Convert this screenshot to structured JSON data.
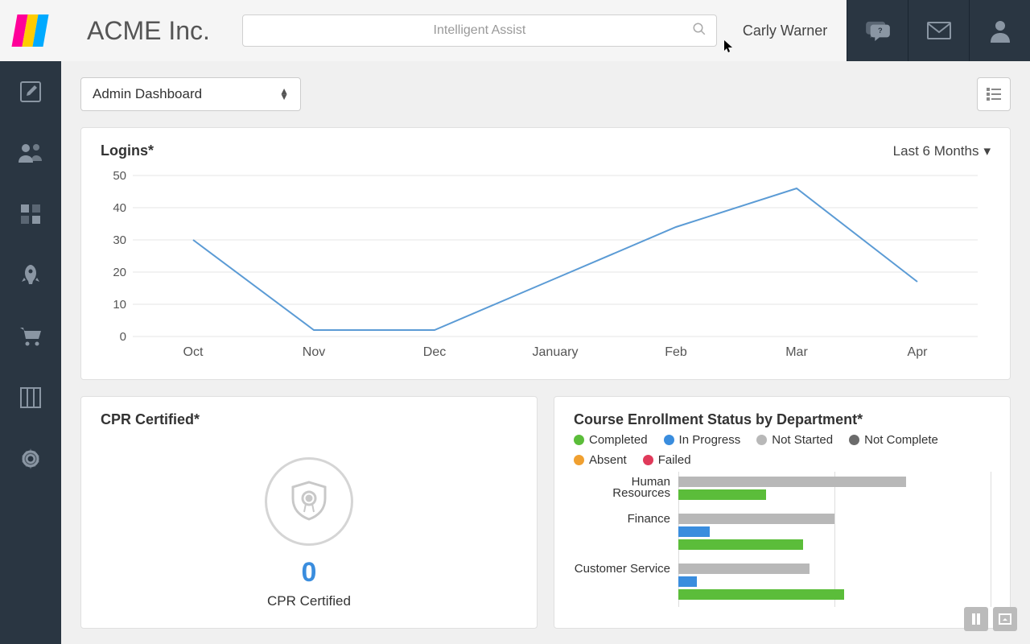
{
  "header": {
    "company": "ACME Inc.",
    "search_placeholder": "Intelligent Assist",
    "user_name": "Carly Warner"
  },
  "dashboard": {
    "selector_label": "Admin Dashboard"
  },
  "logins_chart": {
    "title": "Logins*",
    "time_range": "Last 6 Months",
    "type": "line",
    "xlabels": [
      "Oct",
      "Nov",
      "Dec",
      "January",
      "Feb",
      "Mar",
      "Apr"
    ],
    "values": [
      30,
      2,
      2,
      18,
      34,
      46,
      17
    ],
    "ylim": [
      0,
      50
    ],
    "ytick_step": 10,
    "line_color": "#5b9bd5",
    "line_width": 2,
    "grid_color": "#e5e5e5",
    "axis_label_color": "#555555",
    "background_color": "#ffffff"
  },
  "cpr": {
    "title": "CPR Certified*",
    "value": "0",
    "label": "CPR Certified",
    "value_color": "#3a8dde",
    "badge_border_color": "#d5d5d5"
  },
  "dept_chart": {
    "title": "Course Enrollment Status by Department*",
    "type": "grouped-horizontal-bar",
    "legend": [
      {
        "label": "Completed",
        "color": "#5bbd3a"
      },
      {
        "label": "In Progress",
        "color": "#3a8dde"
      },
      {
        "label": "Not Started",
        "color": "#b8b8b8"
      },
      {
        "label": "Not Complete",
        "color": "#6b6b6b"
      },
      {
        "label": "Absent",
        "color": "#f0a030"
      },
      {
        "label": "Failed",
        "color": "#e03a5a"
      }
    ],
    "departments": [
      {
        "name": "Human Resources",
        "bars": [
          {
            "status": "Not Started",
            "width_pct": 73,
            "color": "#b8b8b8"
          },
          {
            "status": "Completed",
            "width_pct": 28,
            "color": "#5bbd3a"
          }
        ]
      },
      {
        "name": "Finance",
        "bars": [
          {
            "status": "Not Started",
            "width_pct": 50,
            "color": "#b8b8b8"
          },
          {
            "status": "In Progress",
            "width_pct": 10,
            "color": "#3a8dde"
          },
          {
            "status": "Completed",
            "width_pct": 40,
            "color": "#5bbd3a"
          }
        ]
      },
      {
        "name": "Customer Service",
        "bars": [
          {
            "status": "Not Started",
            "width_pct": 42,
            "color": "#b8b8b8"
          },
          {
            "status": "In Progress",
            "width_pct": 6,
            "color": "#3a8dde"
          },
          {
            "status": "Completed",
            "width_pct": 53,
            "color": "#5bbd3a"
          }
        ]
      }
    ],
    "grid_positions_pct": [
      0,
      50,
      100
    ],
    "background_color": "#ffffff"
  },
  "colors": {
    "sidebar_bg": "#2a3642",
    "header_bg": "#f5f5f5",
    "card_bg": "#ffffff",
    "body_bg": "#f0f0f0"
  }
}
